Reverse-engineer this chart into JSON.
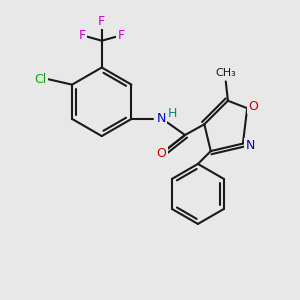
{
  "bg_color": "#e8e8e8",
  "line_color": "#1a1a1a",
  "bond_lw": 1.5,
  "font_size": 9,
  "atoms": {
    "N_amide": {
      "label": "N",
      "color": "#0000cc"
    },
    "H_amide": {
      "label": "H",
      "color": "#008888"
    },
    "O_carbonyl": {
      "label": "O",
      "color": "#cc0000"
    },
    "O_ring": {
      "label": "O",
      "color": "#cc0000"
    },
    "N_ring": {
      "label": "N",
      "color": "#0000cc"
    },
    "Cl": {
      "label": "Cl",
      "color": "#00aa00"
    },
    "F1": {
      "label": "F",
      "color": "#cc00cc"
    },
    "F2": {
      "label": "F",
      "color": "#cc00cc"
    },
    "F3": {
      "label": "F",
      "color": "#cc00cc"
    },
    "CH3": {
      "label": "CH₃",
      "color": "#1a1a1a"
    }
  }
}
